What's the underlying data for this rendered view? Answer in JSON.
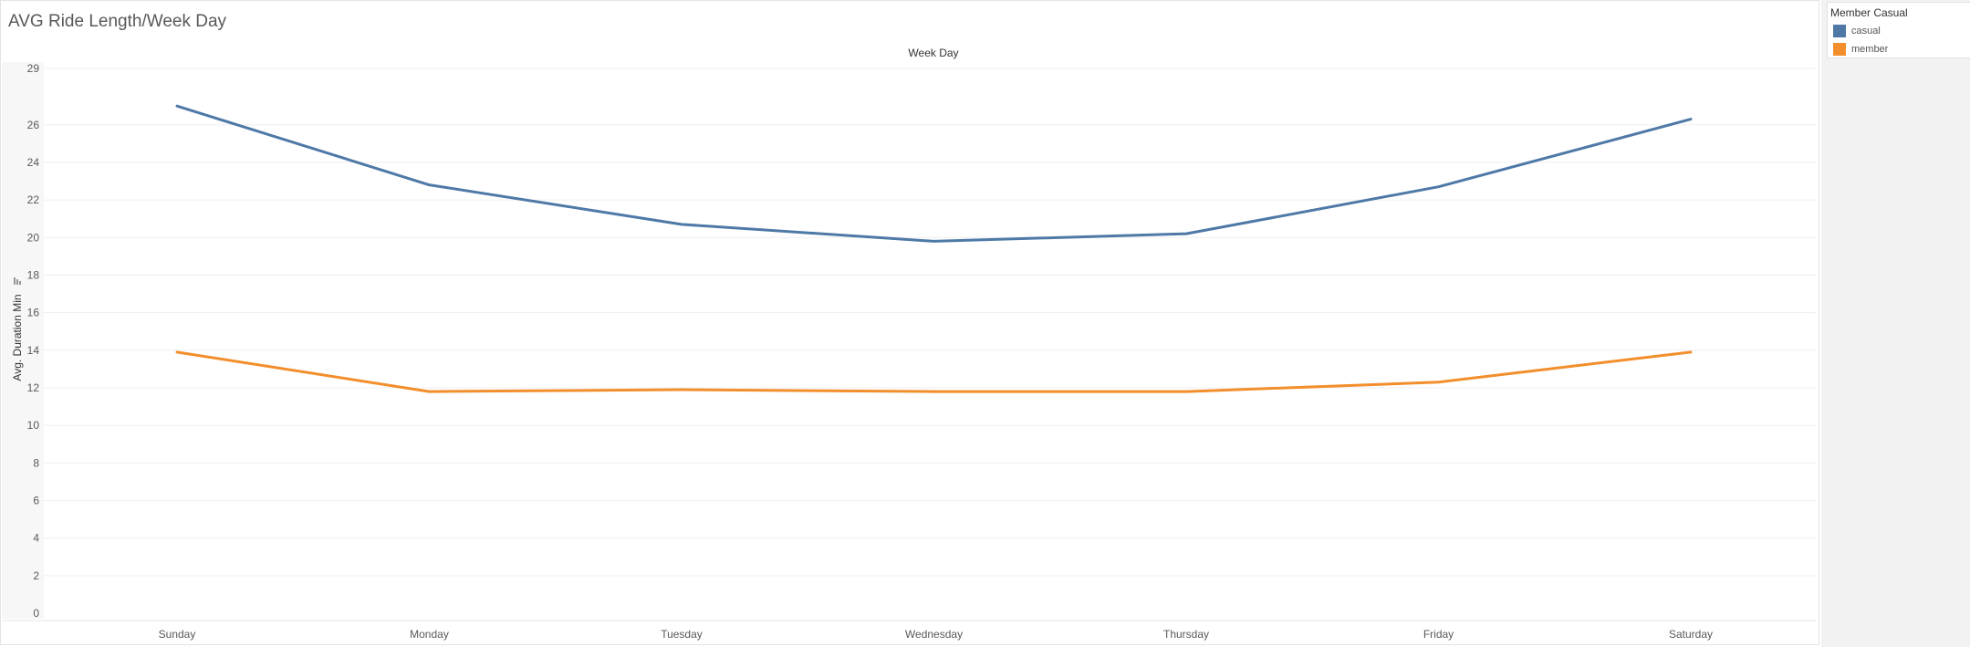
{
  "title": "AVG Ride Length/Week Day",
  "legend": {
    "title": "Member Casual",
    "items": [
      {
        "label": "casual",
        "color": "#4e79a7"
      },
      {
        "label": "member",
        "color": "#f28e2b"
      }
    ]
  },
  "chart_data": {
    "type": "line",
    "title": "AVG Ride Length/Week Day",
    "xlabel": "Week Day",
    "ylabel": "Avg. Duration Min",
    "categories": [
      "Sunday",
      "Monday",
      "Tuesday",
      "Wednesday",
      "Thursday",
      "Friday",
      "Saturday"
    ],
    "series": [
      {
        "name": "casual",
        "color": "#4e79a7",
        "values": [
          27.0,
          22.8,
          20.7,
          19.8,
          20.2,
          22.7,
          26.3
        ]
      },
      {
        "name": "member",
        "color": "#f28e2b",
        "values": [
          13.9,
          11.8,
          11.9,
          11.8,
          11.8,
          12.3,
          13.9
        ]
      }
    ],
    "y_ticks": [
      0,
      2,
      4,
      6,
      8,
      10,
      12,
      14,
      16,
      18,
      20,
      22,
      24,
      26,
      29
    ],
    "ylim": [
      0,
      29
    ],
    "grid": true,
    "legend_position": "right"
  }
}
